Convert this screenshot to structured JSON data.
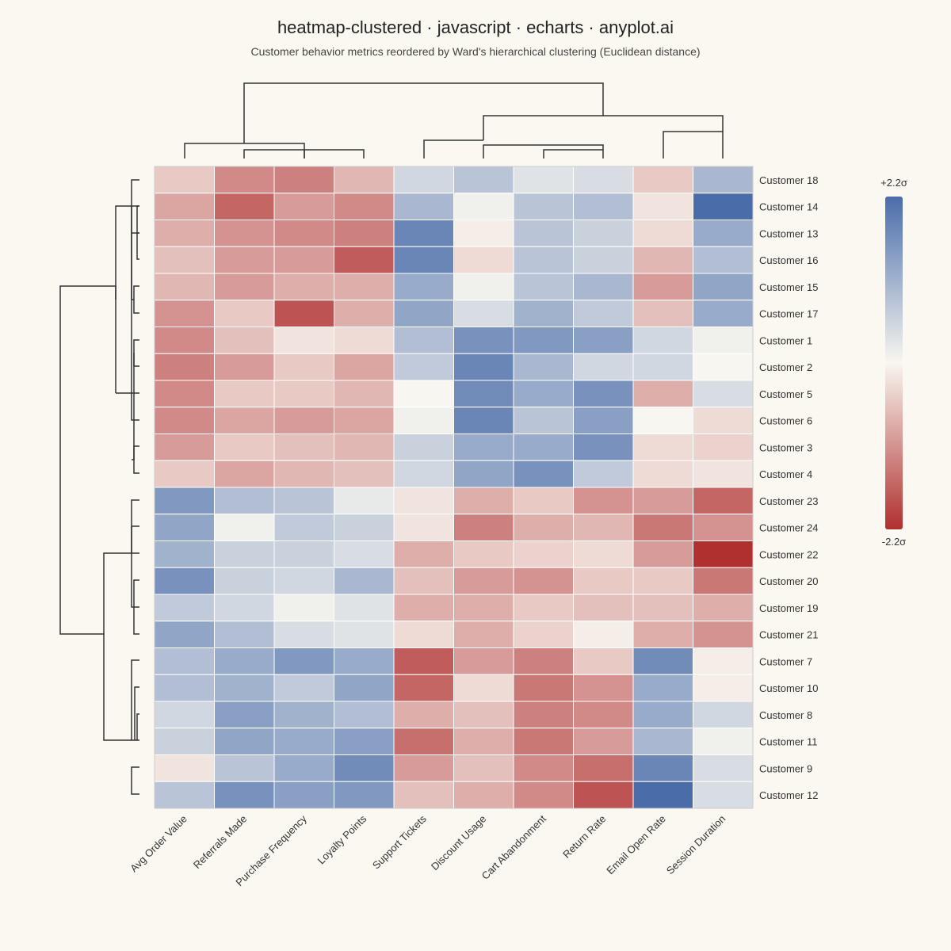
{
  "title": "heatmap-clustered · javascript · echarts · anyplot.ai",
  "subtitle": "Customer behavior metrics reordered by Ward's hierarchical clustering (Euclidean distance)",
  "colors": {
    "background": "#FAF8F1",
    "low": "#B03030",
    "mid": "#F8F6F0",
    "high": "#4A6DAA",
    "line": "#333333"
  },
  "chart_data": {
    "type": "heatmap",
    "title": "heatmap-clustered · javascript · echarts · anyplot.ai",
    "subtitle": "Customer behavior metrics reordered by Ward's hierarchical clustering (Euclidean distance)",
    "columns": [
      "Avg Order Value",
      "Referrals Made",
      "Purchase Frequency",
      "Loyalty Points",
      "Support Tickets",
      "Discount Usage",
      "Cart Abandonment",
      "Return Rate",
      "Email Open Rate",
      "Session Duration"
    ],
    "rows": [
      "Customer 18",
      "Customer 14",
      "Customer 13",
      "Customer 16",
      "Customer 15",
      "Customer 17",
      "Customer 1",
      "Customer 2",
      "Customer 5",
      "Customer 6",
      "Customer 3",
      "Customer 4",
      "Customer 23",
      "Customer 24",
      "Customer 22",
      "Customer 20",
      "Customer 19",
      "Customer 21",
      "Customer 7",
      "Customer 10",
      "Customer 8",
      "Customer 11",
      "Customer 9",
      "Customer 12"
    ],
    "values": [
      [
        -0.5,
        -1.2,
        -1.3,
        -0.7,
        0.5,
        0.8,
        0.3,
        0.4,
        -0.5,
        1.0
      ],
      [
        -0.9,
        -1.6,
        -1.0,
        -1.2,
        1.0,
        0.1,
        0.8,
        0.9,
        -0.2,
        2.2
      ],
      [
        -0.8,
        -1.1,
        -1.2,
        -1.3,
        1.8,
        -0.1,
        0.8,
        0.6,
        -0.3,
        1.2
      ],
      [
        -0.6,
        -1.0,
        -1.0,
        -1.7,
        1.8,
        -0.3,
        0.8,
        0.6,
        -0.7,
        0.9
      ],
      [
        -0.7,
        -1.0,
        -0.8,
        -0.8,
        1.2,
        0.1,
        0.8,
        1.0,
        -1.0,
        1.3
      ],
      [
        -1.1,
        -0.5,
        -1.8,
        -0.8,
        1.3,
        0.4,
        1.1,
        0.7,
        -0.6,
        1.2
      ],
      [
        -1.2,
        -0.6,
        -0.2,
        -0.3,
        0.9,
        1.6,
        1.5,
        1.4,
        0.5,
        0.1
      ],
      [
        -1.3,
        -1.0,
        -0.5,
        -0.9,
        0.7,
        1.8,
        1.0,
        0.5,
        0.5,
        0.0
      ],
      [
        -1.2,
        -0.5,
        -0.5,
        -0.7,
        0.0,
        1.7,
        1.2,
        1.6,
        -0.8,
        0.4
      ],
      [
        -1.2,
        -0.9,
        -1.0,
        -0.9,
        0.1,
        1.8,
        0.8,
        1.4,
        0.0,
        -0.3
      ],
      [
        -1.0,
        -0.5,
        -0.6,
        -0.7,
        0.6,
        1.2,
        1.2,
        1.6,
        -0.3,
        -0.4
      ],
      [
        -0.5,
        -0.9,
        -0.7,
        -0.6,
        0.5,
        1.3,
        1.6,
        0.7,
        -0.3,
        -0.2
      ],
      [
        1.5,
        0.9,
        0.8,
        0.2,
        -0.2,
        -0.8,
        -0.5,
        -1.1,
        -1.0,
        -1.6
      ],
      [
        1.3,
        0.1,
        0.7,
        0.6,
        -0.2,
        -1.3,
        -0.8,
        -0.7,
        -1.4,
        -1.1
      ],
      [
        1.1,
        0.6,
        0.6,
        0.4,
        -0.8,
        -0.5,
        -0.4,
        -0.3,
        -1.0,
        -2.2
      ],
      [
        1.6,
        0.6,
        0.5,
        1.0,
        -0.6,
        -1.0,
        -1.1,
        -0.5,
        -0.5,
        -1.4
      ],
      [
        0.7,
        0.5,
        0.1,
        0.3,
        -0.8,
        -0.8,
        -0.5,
        -0.6,
        -0.6,
        -0.8
      ],
      [
        1.3,
        0.9,
        0.4,
        0.3,
        -0.3,
        -0.8,
        -0.4,
        -0.1,
        -0.8,
        -1.1
      ],
      [
        0.9,
        1.2,
        1.5,
        1.2,
        -1.7,
        -1.0,
        -1.3,
        -0.5,
        1.7,
        -0.1
      ],
      [
        0.9,
        1.1,
        0.7,
        1.3,
        -1.6,
        -0.3,
        -1.4,
        -1.1,
        1.2,
        -0.1
      ],
      [
        0.5,
        1.4,
        1.1,
        0.9,
        -0.8,
        -0.6,
        -1.3,
        -1.2,
        1.2,
        0.5
      ],
      [
        0.6,
        1.3,
        1.2,
        1.4,
        -1.5,
        -0.8,
        -1.4,
        -1.0,
        1.0,
        0.1
      ],
      [
        -0.2,
        0.8,
        1.2,
        1.7,
        -1.0,
        -0.6,
        -1.2,
        -1.5,
        1.8,
        0.4
      ],
      [
        0.8,
        1.6,
        1.4,
        1.5,
        -0.6,
        -0.8,
        -1.2,
        -1.8,
        2.2,
        0.4
      ]
    ],
    "colorbar": {
      "max_label": "+2.2σ",
      "min_label": "-2.2σ",
      "range": [
        -2.2,
        2.2
      ]
    }
  }
}
